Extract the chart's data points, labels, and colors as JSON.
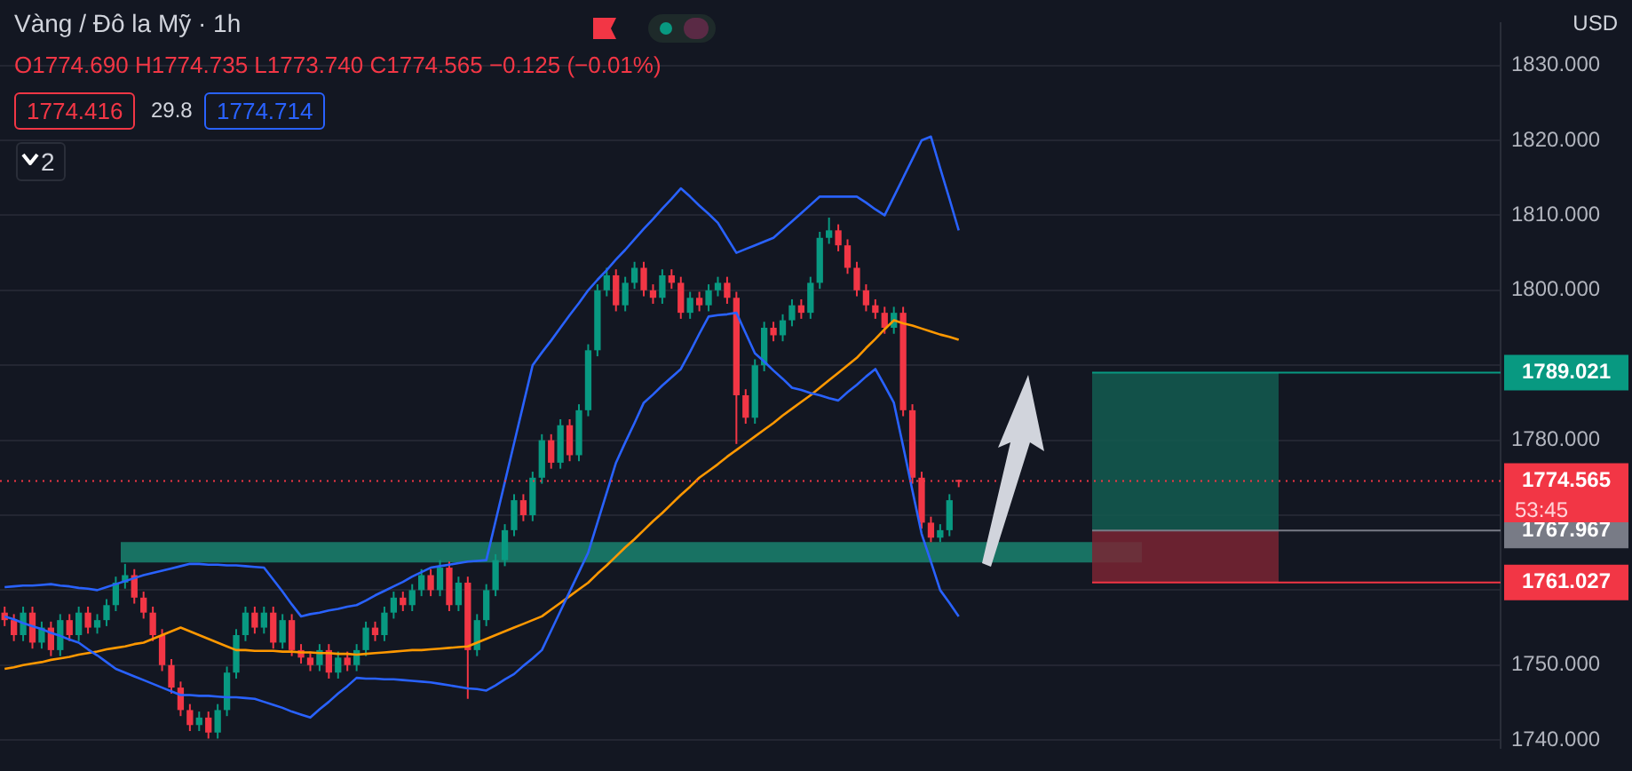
{
  "chart_data": {
    "type": "candlestick",
    "title": "Vàng / Đô la Mỹ · 1h",
    "subtitle": "O1774.690 H1774.735 L1773.740 C1774.565 −0.125 (−0.01%)",
    "annotations": [
      "USD",
      "1774.416",
      "29.8",
      "1774.714",
      "2",
      "53:45"
    ],
    "categories": [
      null,
      null,
      null,
      null,
      null,
      null,
      null,
      null,
      null,
      null,
      null,
      null,
      null,
      null,
      null,
      null,
      null,
      null,
      null,
      null,
      null,
      null,
      null,
      null,
      null,
      null,
      null,
      null,
      null,
      null,
      null,
      null,
      null,
      null,
      null,
      null,
      null,
      null,
      null,
      null,
      null,
      null,
      null,
      null,
      null,
      null,
      null,
      null,
      null,
      null,
      null,
      null,
      null,
      null,
      null,
      null,
      null,
      null,
      null,
      null,
      null,
      null,
      null,
      null,
      null,
      null,
      null,
      null,
      null,
      null,
      null,
      null,
      null,
      null,
      null,
      null,
      null,
      null,
      null,
      null,
      null,
      null,
      null,
      null,
      null,
      null,
      null,
      null,
      null,
      null,
      null,
      null,
      null,
      null,
      null,
      null,
      null,
      null,
      null,
      null,
      null,
      null,
      null,
      null,
      null,
      null,
      null,
      null,
      null,
      null,
      null,
      null,
      null,
      null,
      null,
      null,
      null,
      null,
      null,
      null,
      null,
      null,
      null,
      null,
      null,
      null,
      null,
      null,
      null,
      null,
      null,
      null,
      null,
      null,
      null,
      null,
      null,
      null,
      null,
      null,
      null,
      null,
      null,
      null,
      null,
      null,
      null,
      null,
      null,
      null,
      null,
      null,
      null,
      null,
      null,
      null,
      null,
      null,
      null,
      null,
      null,
      null
    ],
    "ohlc": [
      [
        1757,
        1757.8,
        1755.2,
        1756
      ],
      [
        1756,
        1756.8,
        1753.2,
        1754
      ],
      [
        1754,
        1757.8,
        1753.2,
        1757
      ],
      [
        1757,
        1757.8,
        1752.2,
        1753
      ],
      [
        1753,
        1755.8,
        1752.2,
        1755
      ],
      [
        1755,
        1755.8,
        1751.2,
        1752
      ],
      [
        1752,
        1756.8,
        1751.2,
        1756
      ],
      [
        1756,
        1756.8,
        1753.2,
        1754
      ],
      [
        1754,
        1757.8,
        1753.2,
        1757
      ],
      [
        1757,
        1757.8,
        1754.2,
        1755
      ],
      [
        1755,
        1756.8,
        1754.2,
        1756
      ],
      [
        1756,
        1758.8,
        1755.2,
        1758
      ],
      [
        1758,
        1761.8,
        1757.2,
        1761
      ],
      [
        1761,
        1763.5,
        1760.2,
        1762
      ],
      [
        1762,
        1762.8,
        1758.2,
        1759
      ],
      [
        1759,
        1759.8,
        1756.2,
        1757
      ],
      [
        1757,
        1757.8,
        1753.2,
        1754
      ],
      [
        1754,
        1754.8,
        1749.2,
        1750
      ],
      [
        1750,
        1750.8,
        1746.2,
        1747
      ],
      [
        1747,
        1747.8,
        1743.2,
        1744
      ],
      [
        1744,
        1744.8,
        1741.2,
        1742
      ],
      [
        1742,
        1743.8,
        1741.2,
        1743
      ],
      [
        1743,
        1743.8,
        1740.2,
        1741
      ],
      [
        1741,
        1744.8,
        1740.2,
        1744
      ],
      [
        1744,
        1749.8,
        1743.2,
        1749
      ],
      [
        1749,
        1754.8,
        1748.2,
        1754
      ],
      [
        1754,
        1757.8,
        1753.2,
        1757
      ],
      [
        1757,
        1757.8,
        1754.2,
        1755
      ],
      [
        1755,
        1757.8,
        1754.2,
        1757
      ],
      [
        1757,
        1757.8,
        1752.2,
        1753
      ],
      [
        1753,
        1756.8,
        1752.2,
        1756
      ],
      [
        1756,
        1756.8,
        1751.2,
        1752
      ],
      [
        1752,
        1752.8,
        1750.2,
        1751
      ],
      [
        1751,
        1751.8,
        1749.2,
        1750
      ],
      [
        1750,
        1752.8,
        1749.2,
        1752
      ],
      [
        1752,
        1752.8,
        1748.2,
        1749
      ],
      [
        1749,
        1751.8,
        1748.2,
        1751
      ],
      [
        1751,
        1751.8,
        1749.2,
        1750
      ],
      [
        1750,
        1752.8,
        1749.2,
        1752
      ],
      [
        1752,
        1755.8,
        1751.2,
        1755
      ],
      [
        1755,
        1755.8,
        1753.2,
        1754
      ],
      [
        1754,
        1757.8,
        1753.2,
        1757
      ],
      [
        1757,
        1759.8,
        1756.2,
        1759
      ],
      [
        1759,
        1759.8,
        1757.2,
        1758
      ],
      [
        1758,
        1760.8,
        1757.2,
        1760
      ],
      [
        1760,
        1762.8,
        1759.2,
        1762
      ],
      [
        1762,
        1762.8,
        1759.2,
        1760
      ],
      [
        1760,
        1764,
        1759.2,
        1763
      ],
      [
        1763,
        1763.8,
        1757.2,
        1758
      ],
      [
        1758,
        1761.8,
        1757.2,
        1761
      ],
      [
        1761,
        1761.8,
        1745.5,
        1752
      ],
      [
        1752,
        1756.8,
        1751.2,
        1756
      ],
      [
        1756,
        1760.8,
        1755.2,
        1760
      ],
      [
        1760,
        1764.8,
        1759.2,
        1764
      ],
      [
        1764,
        1768.8,
        1763.2,
        1768
      ],
      [
        1768,
        1772.8,
        1767.2,
        1772
      ],
      [
        1772,
        1772.8,
        1769.2,
        1770
      ],
      [
        1770,
        1775.8,
        1769.2,
        1775
      ],
      [
        1775,
        1780.8,
        1774.2,
        1780
      ],
      [
        1780,
        1780.8,
        1776.2,
        1777
      ],
      [
        1777,
        1782.8,
        1776.2,
        1782
      ],
      [
        1782,
        1782.8,
        1777.2,
        1778
      ],
      [
        1778,
        1784.8,
        1777.2,
        1784
      ],
      [
        1784,
        1792.8,
        1783.2,
        1792
      ],
      [
        1792,
        1800.8,
        1791.2,
        1800
      ],
      [
        1800,
        1803,
        1799.2,
        1802
      ],
      [
        1802,
        1802.8,
        1797.2,
        1798
      ],
      [
        1798,
        1801.8,
        1797.2,
        1801
      ],
      [
        1801,
        1803.8,
        1800.2,
        1803
      ],
      [
        1803,
        1803.8,
        1799.2,
        1800
      ],
      [
        1800,
        1800.8,
        1798.2,
        1799
      ],
      [
        1799,
        1802.8,
        1798.2,
        1802
      ],
      [
        1802,
        1802.8,
        1800.2,
        1801
      ],
      [
        1801,
        1801.8,
        1796.2,
        1797
      ],
      [
        1797,
        1799.8,
        1796.2,
        1799
      ],
      [
        1799,
        1799.8,
        1797.2,
        1798
      ],
      [
        1798,
        1800.8,
        1797.2,
        1800
      ],
      [
        1800,
        1801.8,
        1799.2,
        1801
      ],
      [
        1801,
        1801.8,
        1798.2,
        1799
      ],
      [
        1799,
        1799.8,
        1779.5,
        1786
      ],
      [
        1786,
        1786.8,
        1782.2,
        1783
      ],
      [
        1783,
        1790.8,
        1782.2,
        1790
      ],
      [
        1790,
        1795.8,
        1789.2,
        1795
      ],
      [
        1795,
        1795.8,
        1793.2,
        1794
      ],
      [
        1794,
        1796.8,
        1793.2,
        1796
      ],
      [
        1796,
        1798.8,
        1795.2,
        1798
      ],
      [
        1798,
        1798.8,
        1796.2,
        1797
      ],
      [
        1797,
        1801.8,
        1796.2,
        1801
      ],
      [
        1801,
        1807.8,
        1800.2,
        1807
      ],
      [
        1807,
        1809.7,
        1806.2,
        1808
      ],
      [
        1808,
        1808.8,
        1805.2,
        1806
      ],
      [
        1806,
        1806.8,
        1802.2,
        1803
      ],
      [
        1803,
        1803.8,
        1799.2,
        1800
      ],
      [
        1800,
        1800.8,
        1797.2,
        1798
      ],
      [
        1798,
        1798.8,
        1796.2,
        1797
      ],
      [
        1797,
        1797.8,
        1794.2,
        1795
      ],
      [
        1795,
        1797.8,
        1794.2,
        1797
      ],
      [
        1797,
        1797.8,
        1783.2,
        1784
      ],
      [
        1784,
        1784.8,
        1774.2,
        1775
      ],
      [
        1775,
        1775.8,
        1768.2,
        1769
      ],
      [
        1769,
        1769.8,
        1766.4,
        1767
      ],
      [
        1767,
        1768.8,
        1766.4,
        1768
      ],
      [
        1768,
        1772.8,
        1767.2,
        1772
      ],
      [
        1774.69,
        1774.735,
        1773.74,
        1774.565
      ],
      null,
      null,
      null,
      null,
      null,
      null,
      null,
      null,
      null,
      null,
      null,
      null,
      null,
      null,
      null,
      null,
      null,
      null,
      null,
      null,
      null,
      null,
      null,
      null,
      null,
      null,
      null,
      null,
      null,
      null,
      null,
      null,
      null,
      null,
      null,
      null,
      null,
      null,
      null,
      null,
      null,
      null,
      null,
      null,
      null,
      null,
      null,
      null,
      null,
      null,
      null,
      null,
      null,
      null,
      null,
      null,
      null,
      null
    ],
    "colors": [
      "#f23645",
      "#f23645",
      "#089981",
      "#f23645",
      "#089981",
      "#f23645",
      "#089981",
      "#f23645",
      "#089981",
      "#f23645",
      "#089981",
      "#089981",
      "#089981",
      "#089981",
      "#f23645",
      "#f23645",
      "#f23645",
      "#f23645",
      "#f23645",
      "#f23645",
      "#f23645",
      "#089981",
      "#f23645",
      "#089981",
      "#089981",
      "#089981",
      "#089981",
      "#f23645",
      "#089981",
      "#f23645",
      "#089981",
      "#f23645",
      "#f23645",
      "#f23645",
      "#089981",
      "#f23645",
      "#089981",
      "#f23645",
      "#089981",
      "#089981",
      "#f23645",
      "#089981",
      "#089981",
      "#f23645",
      "#089981",
      "#089981",
      "#f23645",
      "#089981",
      "#f23645",
      "#089981",
      "#f23645",
      "#089981",
      "#089981",
      "#089981",
      "#089981",
      "#089981",
      "#f23645",
      "#089981",
      "#089981",
      "#f23645",
      "#089981",
      "#f23645",
      "#089981",
      "#089981",
      "#089981",
      "#089981",
      "#f23645",
      "#089981",
      "#089981",
      "#f23645",
      "#f23645",
      "#089981",
      "#f23645",
      "#f23645",
      "#089981",
      "#f23645",
      "#089981",
      "#089981",
      "#f23645",
      "#f23645",
      "#f23645",
      "#089981",
      "#089981",
      "#f23645",
      "#089981",
      "#089981",
      "#f23645",
      "#089981",
      "#089981",
      "#089981",
      "#f23645",
      "#f23645",
      "#f23645",
      "#f23645",
      "#f23645",
      "#f23645",
      "#089981",
      "#f23645",
      "#f23645",
      "#f23645",
      "#f23645",
      "#089981",
      "#089981",
      "#f23645",
      null,
      null,
      null,
      null,
      null,
      null,
      null,
      null,
      null,
      null,
      null,
      null,
      null,
      null,
      null,
      null,
      null,
      null,
      null,
      null,
      null,
      null,
      null,
      null,
      null,
      null,
      null,
      null,
      null,
      null,
      null,
      null,
      null,
      null,
      null,
      null,
      null,
      null,
      null,
      null,
      null,
      null,
      null,
      null,
      null,
      null,
      null,
      null,
      null,
      null,
      null,
      null,
      null,
      null,
      null,
      null,
      null,
      null
    ],
    "series": [
      {
        "type": "line",
        "color": "#2962ff",
        "values": [
          1760.4,
          1760.5,
          1760.6,
          1760.6,
          1760.7,
          1760.8,
          1760.6,
          1760.5,
          1760.3,
          1760.2,
          1760,
          1760.4,
          1760.8,
          1761.2,
          1761.6,
          1762,
          1762.3,
          1762.6,
          1762.9,
          1763.2,
          1763.5,
          1763.5,
          1763.4,
          1763.4,
          1763.3,
          1763.3,
          1763.2,
          1763.1,
          1763,
          1761.4,
          1759.8,
          1758.1,
          1756.5,
          1756.8,
          1757,
          1757.3,
          1757.5,
          1757.8,
          1758,
          1758.6,
          1759.3,
          1759.9,
          1760.5,
          1761.1,
          1761.8,
          1762.4,
          1763,
          1763.2,
          1763.4,
          1763.6,
          1763.8,
          1763.9,
          1764,
          1769.2,
          1774.4,
          1779.6,
          1784.8,
          1790,
          1791.7,
          1793.3,
          1795,
          1796.7,
          1798.3,
          1800,
          1801.4,
          1802.7,
          1804.1,
          1805.4,
          1806.8,
          1808.2,
          1809.5,
          1810.9,
          1812.2,
          1813.6,
          1812.5,
          1811.3,
          1810.2,
          1809,
          1807,
          1805,
          1805.5,
          1806,
          1806.5,
          1807,
          1808.1,
          1809.2,
          1810.3,
          1811.4,
          1812.5,
          1812.5,
          1812.5,
          1812.5,
          1812.5,
          1811.7,
          1810.8,
          1810,
          1812.5,
          1815,
          1817.5,
          1820,
          1820.5,
          1816.3,
          1812.2,
          1808,
          null,
          null,
          null,
          null,
          null,
          null,
          null,
          null,
          null,
          null,
          null,
          null,
          null,
          null,
          null,
          null,
          null,
          null,
          null,
          null,
          null,
          null,
          null,
          null,
          null,
          null,
          null,
          null,
          null,
          null,
          null,
          null,
          null,
          null,
          null,
          null,
          null,
          null,
          null,
          null,
          null,
          null,
          null,
          null,
          null,
          null,
          null,
          null,
          null,
          null,
          null,
          null,
          null,
          null,
          null,
          null,
          null,
          null
        ]
      },
      {
        "type": "line",
        "color": "#2962ff",
        "values": [
          1756.5,
          1756.1,
          1755.6,
          1755.2,
          1754.8,
          1754.3,
          1753.9,
          1753.4,
          1753,
          1752.1,
          1751.3,
          1750.4,
          1749.5,
          1749,
          1748.5,
          1748,
          1747.5,
          1747,
          1746.5,
          1746,
          1746,
          1745.9,
          1745.9,
          1745.8,
          1745.7,
          1745.7,
          1745.6,
          1745.5,
          1745.1,
          1744.7,
          1744.3,
          1743.8,
          1743.4,
          1743,
          1744.1,
          1745.1,
          1746.2,
          1747.2,
          1748.3,
          1748.2,
          1748.2,
          1748.1,
          1748.1,
          1748,
          1747.9,
          1747.8,
          1747.7,
          1747.5,
          1747.3,
          1747.1,
          1746.9,
          1746.8,
          1746.6,
          1747.3,
          1748.1,
          1748.8,
          1749.9,
          1750.9,
          1752,
          1754.6,
          1757.2,
          1759.8,
          1762.4,
          1765,
          1769,
          1773,
          1777,
          1779.7,
          1782.3,
          1785,
          1786.1,
          1787.3,
          1788.4,
          1789.5,
          1791.8,
          1794.2,
          1796.5,
          1796.7,
          1796.8,
          1797,
          1794.3,
          1791.6,
          1790.5,
          1789.3,
          1788.2,
          1787,
          1786.7,
          1786.3,
          1786,
          1785.6,
          1785.3,
          1786.4,
          1787.4,
          1788.5,
          1789.5,
          1787.3,
          1785,
          1779.2,
          1773.3,
          1767.5,
          1763.8,
          1760,
          1758.3,
          1756.5,
          null,
          null,
          null,
          null,
          null,
          null,
          null,
          null,
          null,
          null,
          null,
          null,
          null,
          null,
          null,
          null,
          null,
          null,
          null,
          null,
          null,
          null,
          null,
          null,
          null,
          null,
          null,
          null,
          null,
          null,
          null,
          null,
          null,
          null,
          null,
          null,
          null,
          null,
          null,
          null,
          null,
          null,
          null,
          null,
          null,
          null,
          null,
          null,
          null,
          null,
          null,
          null,
          null,
          null,
          null,
          null,
          null,
          null
        ]
      },
      {
        "type": "line",
        "color": "#ff9800",
        "values": [
          1749.5,
          1749.7,
          1750,
          1750.2,
          1750.4,
          1750.7,
          1750.9,
          1751.1,
          1751.4,
          1751.6,
          1751.8,
          1752.1,
          1752.3,
          1752.5,
          1752.8,
          1753,
          1753.5,
          1754,
          1754.5,
          1755,
          1754.5,
          1754,
          1753.5,
          1753,
          1752.5,
          1752,
          1752,
          1751.9,
          1751.9,
          1751.9,
          1751.8,
          1751.8,
          1751.7,
          1751.7,
          1751.6,
          1751.6,
          1751.5,
          1751.5,
          1751.4,
          1751.5,
          1751.6,
          1751.7,
          1751.8,
          1751.9,
          1752,
          1752,
          1752.1,
          1752.2,
          1752.3,
          1752.4,
          1752.5,
          1753,
          1753.5,
          1754,
          1754.5,
          1755,
          1755.5,
          1756,
          1756.5,
          1757.4,
          1758.3,
          1759.2,
          1760.1,
          1761,
          1762.2,
          1763.3,
          1764.5,
          1765.7,
          1766.8,
          1768,
          1769.2,
          1770.3,
          1771.5,
          1772.7,
          1773.8,
          1775,
          1775.9,
          1776.8,
          1777.8,
          1778.7,
          1779.6,
          1780.5,
          1781.4,
          1782.3,
          1783.3,
          1784.2,
          1785.1,
          1786,
          1787,
          1788,
          1789,
          1790,
          1791,
          1792.3,
          1793.5,
          1794.8,
          1796,
          1795.6,
          1795.3,
          1794.9,
          1794.5,
          1794.1,
          1793.8,
          1793.4,
          null,
          null,
          null,
          null,
          null,
          null,
          null,
          null,
          null,
          null,
          null,
          null,
          null,
          null,
          null,
          null,
          null,
          null,
          null,
          null,
          null,
          null,
          null,
          null,
          null,
          null,
          null,
          null,
          null,
          null,
          null,
          null,
          null,
          null,
          null,
          null,
          null,
          null,
          null,
          null,
          null,
          null,
          null,
          null,
          null,
          null,
          null,
          null,
          null,
          null,
          null,
          null,
          null,
          null,
          null,
          null,
          null,
          null
        ]
      }
    ],
    "ylim": [
      1739,
      1835.6
    ],
    "yticks": [
      {
        "value": 1740,
        "label": "1740.000"
      },
      {
        "value": 1750,
        "label": "1750.000"
      },
      {
        "value": 1760,
        "label": null
      },
      {
        "value": 1770,
        "label": null
      },
      {
        "value": 1780,
        "label": "1780.000"
      },
      {
        "value": 1790,
        "label": null
      },
      {
        "value": 1800,
        "label": "1800.000"
      },
      {
        "value": 1810,
        "label": "1810.000"
      },
      {
        "value": 1820,
        "label": "1820.000"
      },
      {
        "value": 1830,
        "label": "1830.000"
      }
    ],
    "bands": [
      {
        "axis": "y",
        "from": 1763.7,
        "to": 1766.4,
        "color": "#1a8a74"
      },
      {
        "axis": "y",
        "from": 1767.967,
        "to": 1789.021,
        "color": "#135c50"
      },
      {
        "axis": "y",
        "from": 1761.027,
        "to": 1767.967,
        "color": "#7a2533"
      }
    ],
    "ref_lines": [
      {
        "axis": "y",
        "value": 1789.021,
        "label": "1789.021",
        "color": "#089981"
      },
      {
        "axis": "y",
        "value": 1774.565,
        "label": "1774.565",
        "color": "#f23645",
        "line_style": "dotted"
      },
      {
        "axis": "y",
        "value": 1767.967,
        "label": "1767.967",
        "color": "#787b86"
      },
      {
        "axis": "y",
        "value": 1761.027,
        "label": "1761.027",
        "color": "#f23645"
      }
    ],
    "grid": "y",
    "legend": false,
    "tick_labels": "y"
  }
}
